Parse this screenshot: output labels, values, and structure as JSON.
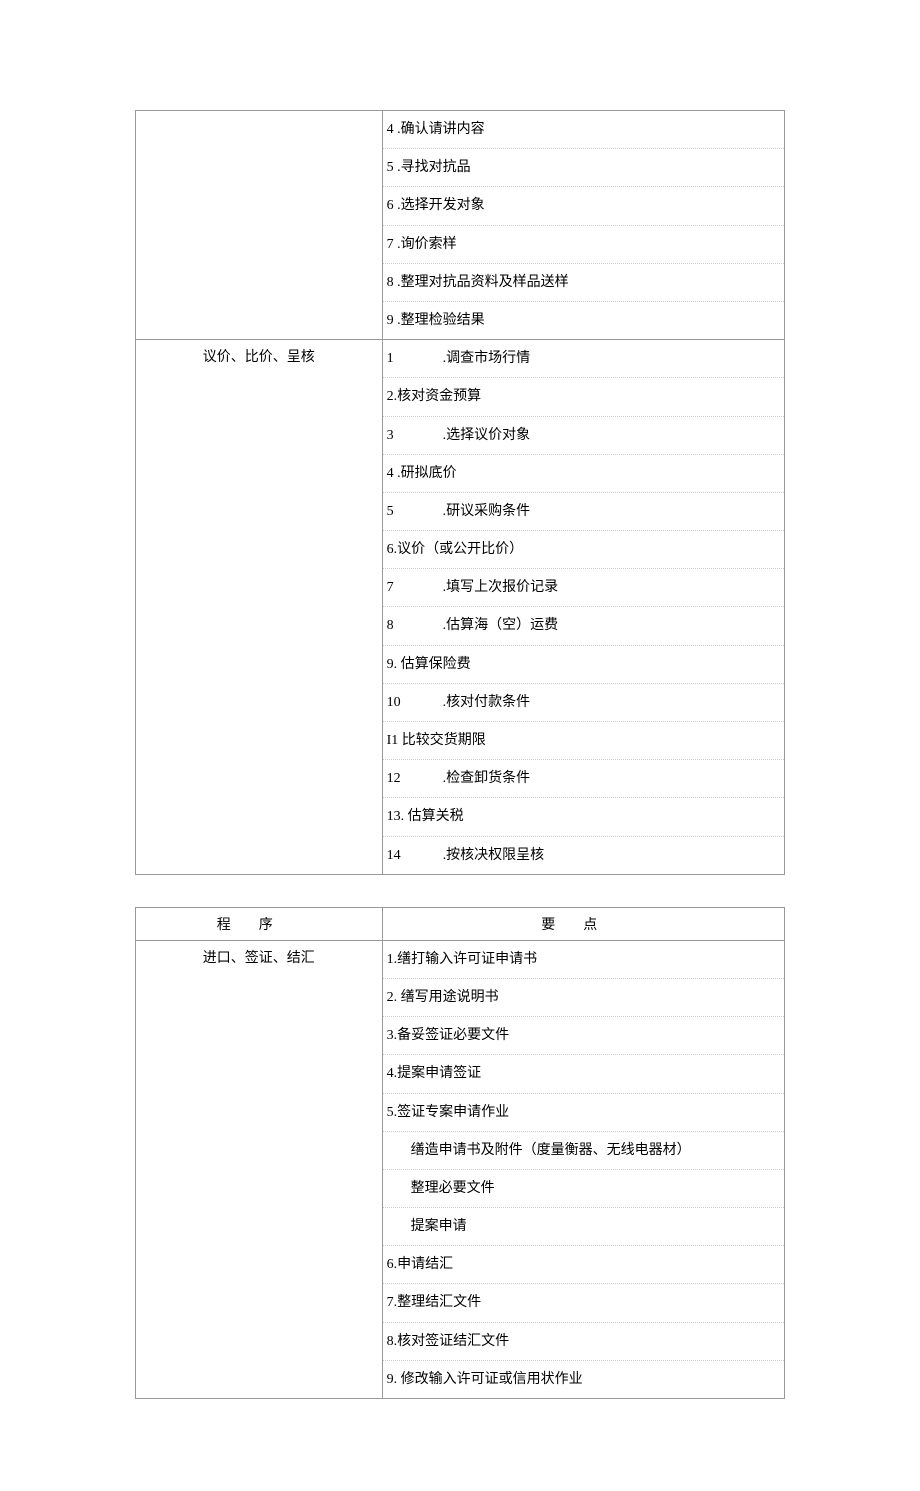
{
  "table1": {
    "rows": [
      {
        "left": "",
        "items": [
          {
            "text": "4 .确认请讲内容"
          },
          {
            "text": "5 .寻找对抗品"
          },
          {
            "text": "6 .选择开发对象"
          },
          {
            "text": "7 .询价索样"
          },
          {
            "text": "8 .整理对抗品资料及样品送样"
          },
          {
            "text": "9 .整理检验结果"
          }
        ]
      },
      {
        "left": "议价、比价、呈核",
        "items": [
          {
            "num": "1",
            "gap": true,
            "text": ".调查市场行情"
          },
          {
            "text": "2.核对资金预算"
          },
          {
            "num": "3",
            "gap": true,
            "text": ".选择议价对象"
          },
          {
            "text": "4 .研拟底价"
          },
          {
            "num": "5",
            "gap": true,
            "text": ".研议采购条件"
          },
          {
            "text": "6.议价（或公开比价）"
          },
          {
            "num": "7",
            "gap": true,
            "text": ".填写上次报价记录"
          },
          {
            "num": "8",
            "gap": true,
            "text": ".估算海（空）运费"
          },
          {
            "text": "9. 估算保险费"
          },
          {
            "num": "10",
            "gap": true,
            "text": ".核对付款条件"
          },
          {
            "text": "I1 比较交货期限"
          },
          {
            "num": "12",
            "gap": true,
            "text": ".检查卸货条件"
          },
          {
            "text": "13. 估算关税"
          },
          {
            "num": "14",
            "gap": true,
            "text": ".按核决权限呈核"
          }
        ]
      }
    ]
  },
  "table2": {
    "header": {
      "left": "程序",
      "right": "要点"
    },
    "rows": [
      {
        "left": "进口、签证、结汇",
        "items": [
          {
            "text": "1.缮打输入许可证申请书"
          },
          {
            "text": "2. 缮写用途说明书"
          },
          {
            "text": "3.备妥签证必要文件"
          },
          {
            "text": "4.提案申请签证"
          },
          {
            "text": "5.签证专案申请作业"
          },
          {
            "text": "缮造申请书及附件（度量衡器、无线电器材）",
            "indent": true
          },
          {
            "text": "整理必要文件",
            "indent": true
          },
          {
            "text": "提案申请",
            "indent": true
          },
          {
            "text": "6.申请结汇"
          },
          {
            "text": "7.整理结汇文件"
          },
          {
            "text": "8.核对签证结汇文件"
          },
          {
            "text": "9. 修改输入许可证或信用状作业"
          }
        ]
      }
    ]
  }
}
